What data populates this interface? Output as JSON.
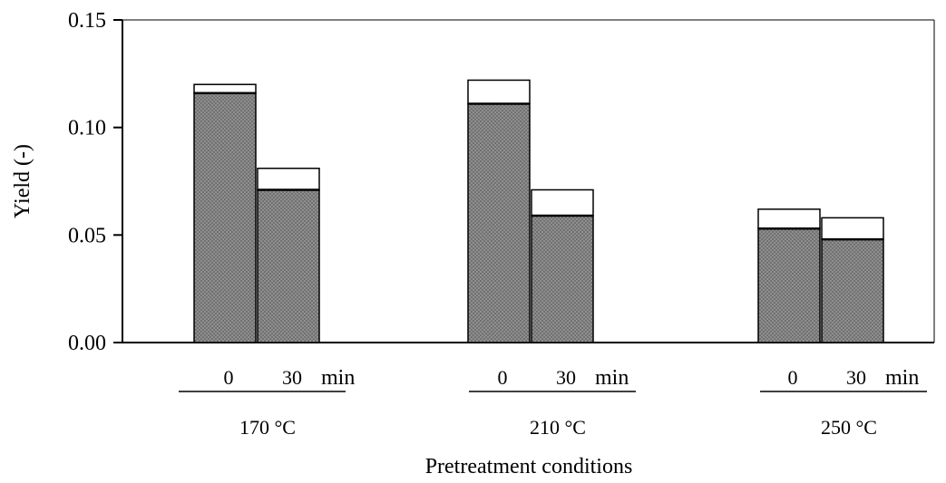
{
  "colors": {
    "axis": "#000000",
    "stacked_lower_fill": "#8f8f8f",
    "stacked_upper_fill": "#ffffff"
  },
  "chart_data": {
    "type": "bar",
    "stacked": true,
    "title": "",
    "ylabel": "Yield (-)",
    "xlabel": "Pretreatment conditions",
    "ylim": [
      0,
      0.15
    ],
    "yticks": [
      "0.00",
      "0.05",
      "0.10",
      "0.15"
    ],
    "grid": false,
    "legend": "none",
    "time_unit": "min",
    "groups": [
      {
        "label": "170 °C",
        "bars": [
          {
            "label": "0",
            "lower": 0.116,
            "total": 0.12
          },
          {
            "label": "30",
            "lower": 0.071,
            "total": 0.081
          }
        ]
      },
      {
        "label": "210 °C",
        "bars": [
          {
            "label": "0",
            "lower": 0.111,
            "total": 0.122
          },
          {
            "label": "30",
            "lower": 0.059,
            "total": 0.071
          }
        ]
      },
      {
        "label": "250 °C",
        "bars": [
          {
            "label": "0",
            "lower": 0.053,
            "total": 0.062
          },
          {
            "label": "30",
            "lower": 0.048,
            "total": 0.058
          }
        ]
      }
    ]
  }
}
